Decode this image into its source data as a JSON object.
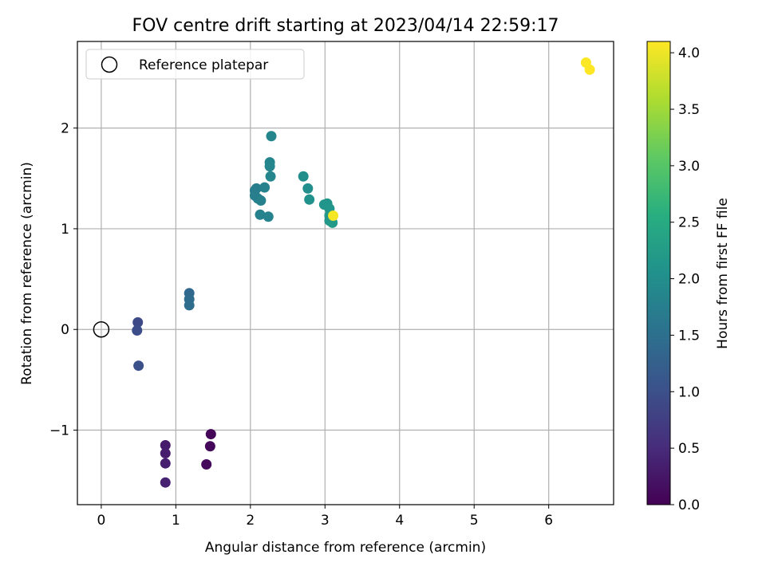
{
  "chart_data": {
    "type": "scatter",
    "title": "FOV centre drift starting at 2023/04/14 22:59:17",
    "xlabel": "Angular distance from reference (arcmin)",
    "ylabel": "Rotation from reference (arcmin)",
    "xlim": [
      -0.32,
      6.87
    ],
    "ylim": [
      -1.74,
      2.86
    ],
    "xticks": [
      0,
      1,
      2,
      3,
      4,
      5,
      6
    ],
    "yticks": [
      -1,
      0,
      1,
      2
    ],
    "xtick_labels": [
      "0",
      "1",
      "2",
      "3",
      "4",
      "5",
      "6"
    ],
    "ytick_labels": [
      "−1",
      "0",
      "1",
      "2"
    ],
    "grid": true,
    "legend": {
      "placement": "top-left",
      "entries": [
        "Reference platepar"
      ]
    },
    "reference_point": {
      "x": 0,
      "y": 0,
      "name": "Reference platepar"
    },
    "colorbar": {
      "label": "Hours from first FF file",
      "colormap": "viridis",
      "range": [
        0.0,
        4.1
      ],
      "ticks": [
        0.0,
        0.5,
        1.0,
        1.5,
        2.0,
        2.5,
        3.0,
        3.5,
        4.0
      ],
      "tick_labels": [
        "0.0",
        "0.5",
        "1.0",
        "1.5",
        "2.0",
        "2.5",
        "3.0",
        "3.5",
        "4.0"
      ]
    },
    "points": [
      {
        "x": 1.47,
        "y": -1.04,
        "h": 0.05
      },
      {
        "x": 1.46,
        "y": -1.16,
        "h": 0.08
      },
      {
        "x": 1.41,
        "y": -1.34,
        "h": 0.1
      },
      {
        "x": 0.86,
        "y": -1.15,
        "h": 0.3
      },
      {
        "x": 0.86,
        "y": -1.23,
        "h": 0.32
      },
      {
        "x": 0.86,
        "y": -1.33,
        "h": 0.35
      },
      {
        "x": 0.86,
        "y": -1.52,
        "h": 0.38
      },
      {
        "x": 0.49,
        "y": 0.07,
        "h": 0.9
      },
      {
        "x": 0.48,
        "y": -0.01,
        "h": 0.95
      },
      {
        "x": 0.5,
        "y": -0.36,
        "h": 1.0
      },
      {
        "x": 1.18,
        "y": 0.36,
        "h": 1.4
      },
      {
        "x": 1.18,
        "y": 0.3,
        "h": 1.42
      },
      {
        "x": 1.18,
        "y": 0.24,
        "h": 1.45
      },
      {
        "x": 2.06,
        "y": 1.38,
        "h": 1.7
      },
      {
        "x": 2.08,
        "y": 1.4,
        "h": 1.72
      },
      {
        "x": 2.06,
        "y": 1.33,
        "h": 1.73
      },
      {
        "x": 2.1,
        "y": 1.3,
        "h": 1.75
      },
      {
        "x": 2.14,
        "y": 1.28,
        "h": 1.78
      },
      {
        "x": 2.19,
        "y": 1.41,
        "h": 1.8
      },
      {
        "x": 2.13,
        "y": 1.14,
        "h": 1.8
      },
      {
        "x": 2.24,
        "y": 1.12,
        "h": 1.82
      },
      {
        "x": 2.26,
        "y": 1.66,
        "h": 1.85
      },
      {
        "x": 2.26,
        "y": 1.62,
        "h": 1.86
      },
      {
        "x": 2.27,
        "y": 1.52,
        "h": 1.88
      },
      {
        "x": 2.28,
        "y": 1.92,
        "h": 1.85
      },
      {
        "x": 2.71,
        "y": 1.52,
        "h": 2.0
      },
      {
        "x": 2.77,
        "y": 1.4,
        "h": 2.02
      },
      {
        "x": 2.79,
        "y": 1.29,
        "h": 2.05
      },
      {
        "x": 2.99,
        "y": 1.24,
        "h": 2.1
      },
      {
        "x": 3.03,
        "y": 1.25,
        "h": 2.12
      },
      {
        "x": 3.06,
        "y": 1.2,
        "h": 2.13
      },
      {
        "x": 3.06,
        "y": 1.13,
        "h": 2.15
      },
      {
        "x": 3.06,
        "y": 1.08,
        "h": 2.15
      },
      {
        "x": 3.1,
        "y": 1.06,
        "h": 2.2
      },
      {
        "x": 3.11,
        "y": 1.13,
        "h": 4.05
      },
      {
        "x": 6.5,
        "y": 2.65,
        "h": 4.08
      },
      {
        "x": 6.55,
        "y": 2.58,
        "h": 4.1
      }
    ]
  }
}
